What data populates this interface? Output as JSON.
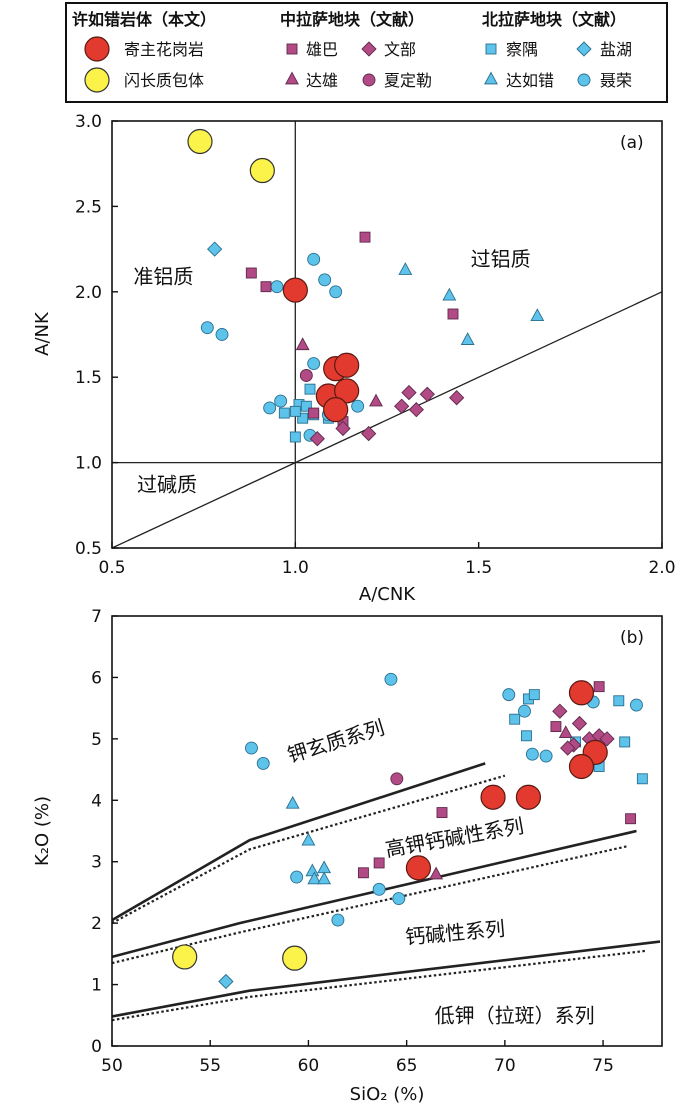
{
  "legend": {
    "groups": [
      {
        "title": "许如错岩体（本文）",
        "items": [
          {
            "key": "granite",
            "label": "寄主花岗岩"
          },
          {
            "key": "enclave",
            "label": "闪长质包体"
          }
        ]
      },
      {
        "title": "中拉萨地块（文献）",
        "items": [
          {
            "key": "xiongba",
            "label": "雄巴"
          },
          {
            "key": "wenbu",
            "label": "文部"
          },
          {
            "key": "daxiong",
            "label": "达雄"
          },
          {
            "key": "xiadingle",
            "label": "夏定勒"
          }
        ]
      },
      {
        "title": "北拉萨地块（文献）",
        "items": [
          {
            "key": "chayu",
            "label": "察隅"
          },
          {
            "key": "yanhu",
            "label": "盐湖"
          },
          {
            "key": "daruco",
            "label": "达如错"
          },
          {
            "key": "nierong",
            "label": "聂荣"
          }
        ]
      }
    ]
  },
  "styles": {
    "granite": {
      "shape": "circle",
      "fill": "#e23a2e",
      "stroke": "#5a1a14",
      "size": 12
    },
    "enclave": {
      "shape": "circle",
      "fill": "#fbf24a",
      "stroke": "#333333",
      "size": 12
    },
    "xiongba": {
      "shape": "square",
      "fill": "#b24a86",
      "stroke": "#5e2a4b",
      "size": 5
    },
    "wenbu": {
      "shape": "diamond",
      "fill": "#b24a86",
      "stroke": "#5e2a4b",
      "size": 7
    },
    "daxiong": {
      "shape": "triangle",
      "fill": "#b24a86",
      "stroke": "#5e2a4b",
      "size": 6.5
    },
    "xiadingle": {
      "shape": "circle",
      "fill": "#b24a86",
      "stroke": "#5e2a4b",
      "size": 6
    },
    "chayu": {
      "shape": "square",
      "fill": "#5ec3ea",
      "stroke": "#2a6f8f",
      "size": 5
    },
    "yanhu": {
      "shape": "diamond",
      "fill": "#5ec3ea",
      "stroke": "#2a6f8f",
      "size": 7
    },
    "daruco": {
      "shape": "triangle",
      "fill": "#5ec3ea",
      "stroke": "#2a6f8f",
      "size": 6.5
    },
    "nierong": {
      "shape": "circle",
      "fill": "#5ec3ea",
      "stroke": "#2a6f8f",
      "size": 6
    }
  },
  "chart_data": [
    {
      "type": "scatter",
      "panel_label": "(a)",
      "xlabel": "A/CNK",
      "ylabel": "A/NK",
      "xlim": [
        0.5,
        2.0
      ],
      "ylim": [
        0.5,
        3.0
      ],
      "xticks": [
        0.5,
        1.0,
        1.5,
        2.0
      ],
      "xtick_labels": [
        "0.5",
        "1.0",
        "1.5",
        "2.0"
      ],
      "yticks": [
        0.5,
        1.0,
        1.5,
        2.0,
        2.5,
        3.0
      ],
      "ytick_labels": [
        "0.5",
        "1.0",
        "1.5",
        "2.0",
        "2.5",
        "3.0"
      ],
      "field_labels": [
        {
          "text": "准铝质",
          "x": 0.64,
          "y": 2.05
        },
        {
          "text": "过铝质",
          "x": 1.56,
          "y": 2.15
        },
        {
          "text": "过碱质",
          "x": 0.65,
          "y": 0.83
        }
      ],
      "lines": [
        {
          "x": [
            1.0,
            1.0
          ],
          "y": [
            0.5,
            3.0
          ]
        },
        {
          "x": [
            0.5,
            2.0
          ],
          "y": [
            1.0,
            1.0
          ]
        },
        {
          "x": [
            0.5,
            2.0
          ],
          "y": [
            0.5,
            2.0
          ]
        }
      ],
      "series": [
        {
          "key": "granite",
          "points": [
            [
              1.0,
              2.01
            ],
            [
              1.11,
              1.55
            ],
            [
              1.14,
              1.57
            ],
            [
              1.09,
              1.39
            ],
            [
              1.14,
              1.42
            ],
            [
              1.11,
              1.31
            ]
          ]
        },
        {
          "key": "enclave",
          "points": [
            [
              0.74,
              2.88
            ],
            [
              0.91,
              2.71
            ]
          ]
        },
        {
          "key": "xiongba",
          "points": [
            [
              1.19,
              2.32
            ],
            [
              0.88,
              2.11
            ],
            [
              0.92,
              2.03
            ],
            [
              1.43,
              1.87
            ],
            [
              1.05,
              1.29
            ],
            [
              1.13,
              1.24
            ]
          ]
        },
        {
          "key": "wenbu",
          "points": [
            [
              1.06,
              1.14
            ],
            [
              1.13,
              1.2
            ],
            [
              1.2,
              1.17
            ],
            [
              1.29,
              1.33
            ],
            [
              1.31,
              1.41
            ],
            [
              1.33,
              1.31
            ],
            [
              1.36,
              1.4
            ],
            [
              1.44,
              1.38
            ]
          ]
        },
        {
          "key": "daxiong",
          "points": [
            [
              1.02,
              1.69
            ],
            [
              1.22,
              1.36
            ],
            [
              1.11,
              1.29
            ]
          ]
        },
        {
          "key": "xiadingle",
          "points": [
            [
              1.03,
              1.51
            ]
          ]
        },
        {
          "key": "chayu",
          "points": [
            [
              1.0,
              1.15
            ],
            [
              1.01,
              1.34
            ],
            [
              1.02,
              1.26
            ],
            [
              1.03,
              1.33
            ],
            [
              1.04,
              1.43
            ],
            [
              1.05,
              1.28
            ],
            [
              1.09,
              1.26
            ],
            [
              1.0,
              1.3
            ],
            [
              0.97,
              1.29
            ]
          ]
        },
        {
          "key": "yanhu",
          "points": [
            [
              0.78,
              2.25
            ]
          ]
        },
        {
          "key": "daruco",
          "points": [
            [
              1.3,
              2.13
            ],
            [
              1.42,
              1.98
            ],
            [
              1.47,
              1.72
            ],
            [
              1.66,
              1.86
            ]
          ]
        },
        {
          "key": "nierong",
          "points": [
            [
              1.05,
              2.19
            ],
            [
              1.08,
              2.07
            ],
            [
              1.11,
              2.0
            ],
            [
              0.95,
              2.03
            ],
            [
              0.76,
              1.79
            ],
            [
              0.8,
              1.75
            ],
            [
              0.93,
              1.32
            ],
            [
              0.96,
              1.36
            ],
            [
              1.05,
              1.58
            ],
            [
              1.04,
              1.16
            ],
            [
              1.09,
              1.28
            ],
            [
              1.17,
              1.33
            ]
          ]
        }
      ]
    },
    {
      "type": "scatter",
      "panel_label": "(b)",
      "xlabel": "SiO₂ (%)",
      "ylabel": "K₂O (%)",
      "xlim": [
        50,
        78
      ],
      "ylim": [
        0,
        7
      ],
      "xticks": [
        50,
        55,
        60,
        65,
        70,
        75
      ],
      "xtick_labels": [
        "50",
        "55",
        "60",
        "65",
        "70",
        "75"
      ],
      "yticks": [
        0,
        1,
        2,
        3,
        4,
        5,
        6,
        7
      ],
      "ytick_labels": [
        "0",
        "1",
        "2",
        "3",
        "4",
        "5",
        "6",
        "7"
      ],
      "field_labels": [
        {
          "text": "钾玄质系列",
          "x": 61.5,
          "y": 4.85,
          "angle": -17
        },
        {
          "text": "高钾钙碱性系列",
          "x": 67.5,
          "y": 3.28,
          "angle": -10
        },
        {
          "text": "钙碱性系列",
          "x": 67.5,
          "y": 1.73,
          "angle": -5
        },
        {
          "text": "低钾（拉斑）系列",
          "x": 70.5,
          "y": 0.38
        }
      ],
      "lines": [
        {
          "x": [
            50,
            57,
            69
          ],
          "y": [
            2.05,
            3.35,
            4.6
          ]
        },
        {
          "x": [
            50,
            57,
            70
          ],
          "y": [
            2.0,
            3.2,
            4.4
          ],
          "dashed": true
        },
        {
          "x": [
            50,
            56.5,
            76.7
          ],
          "y": [
            1.45,
            2.0,
            3.5
          ]
        },
        {
          "x": [
            50,
            56.5,
            76.2
          ],
          "y": [
            1.35,
            1.85,
            3.25
          ],
          "dashed": true
        },
        {
          "x": [
            50,
            57,
            77.9
          ],
          "y": [
            0.48,
            0.9,
            1.7
          ]
        },
        {
          "x": [
            50,
            57,
            77.2
          ],
          "y": [
            0.42,
            0.8,
            1.55
          ],
          "dashed": true
        }
      ],
      "series": [
        {
          "key": "granite",
          "points": [
            [
              73.9,
              5.75
            ],
            [
              74.6,
              4.78
            ],
            [
              73.9,
              4.55
            ],
            [
              69.4,
              4.05
            ],
            [
              71.2,
              4.05
            ],
            [
              65.6,
              2.9
            ]
          ]
        },
        {
          "key": "enclave",
          "points": [
            [
              53.7,
              1.45
            ],
            [
              59.3,
              1.43
            ]
          ]
        },
        {
          "key": "xiongba",
          "points": [
            [
              74.8,
              5.85
            ],
            [
              72.6,
              5.2
            ],
            [
              66.8,
              3.8
            ],
            [
              63.6,
              2.98
            ],
            [
              62.8,
              2.82
            ],
            [
              76.4,
              3.7
            ]
          ]
        },
        {
          "key": "wenbu",
          "points": [
            [
              72.8,
              5.45
            ],
            [
              73.8,
              5.25
            ],
            [
              74.3,
              5.0
            ],
            [
              74.8,
              5.05
            ],
            [
              73.5,
              4.9
            ],
            [
              73.2,
              4.85
            ],
            [
              75.2,
              5.0
            ]
          ]
        },
        {
          "key": "daxiong",
          "points": [
            [
              73.1,
              5.1
            ],
            [
              66.5,
              2.8
            ]
          ]
        },
        {
          "key": "xiadingle",
          "points": [
            [
              64.5,
              4.35
            ]
          ]
        },
        {
          "key": "chayu",
          "points": [
            [
              71.2,
              5.65
            ],
            [
              71.5,
              5.72
            ],
            [
              70.5,
              5.32
            ],
            [
              71.1,
              5.05
            ],
            [
              73.6,
              4.95
            ],
            [
              75.8,
              5.62
            ],
            [
              76.1,
              4.95
            ],
            [
              74.8,
              4.55
            ],
            [
              77.0,
              4.35
            ]
          ]
        },
        {
          "key": "yanhu",
          "points": [
            [
              55.8,
              1.05
            ]
          ]
        },
        {
          "key": "daruco",
          "points": [
            [
              59.2,
              3.95
            ],
            [
              60.0,
              3.35
            ],
            [
              60.2,
              2.85
            ],
            [
              60.8,
              2.9
            ],
            [
              60.3,
              2.72
            ],
            [
              60.8,
              2.72
            ]
          ]
        },
        {
          "key": "nierong",
          "points": [
            [
              64.2,
              5.97
            ],
            [
              70.2,
              5.72
            ],
            [
              71.0,
              5.45
            ],
            [
              71.4,
              4.75
            ],
            [
              72.1,
              4.72
            ],
            [
              74.5,
              5.6
            ],
            [
              76.7,
              5.55
            ],
            [
              57.1,
              4.85
            ],
            [
              57.7,
              4.6
            ],
            [
              59.4,
              2.75
            ],
            [
              63.6,
              2.55
            ],
            [
              64.6,
              2.4
            ],
            [
              61.5,
              2.05
            ]
          ]
        }
      ]
    }
  ]
}
